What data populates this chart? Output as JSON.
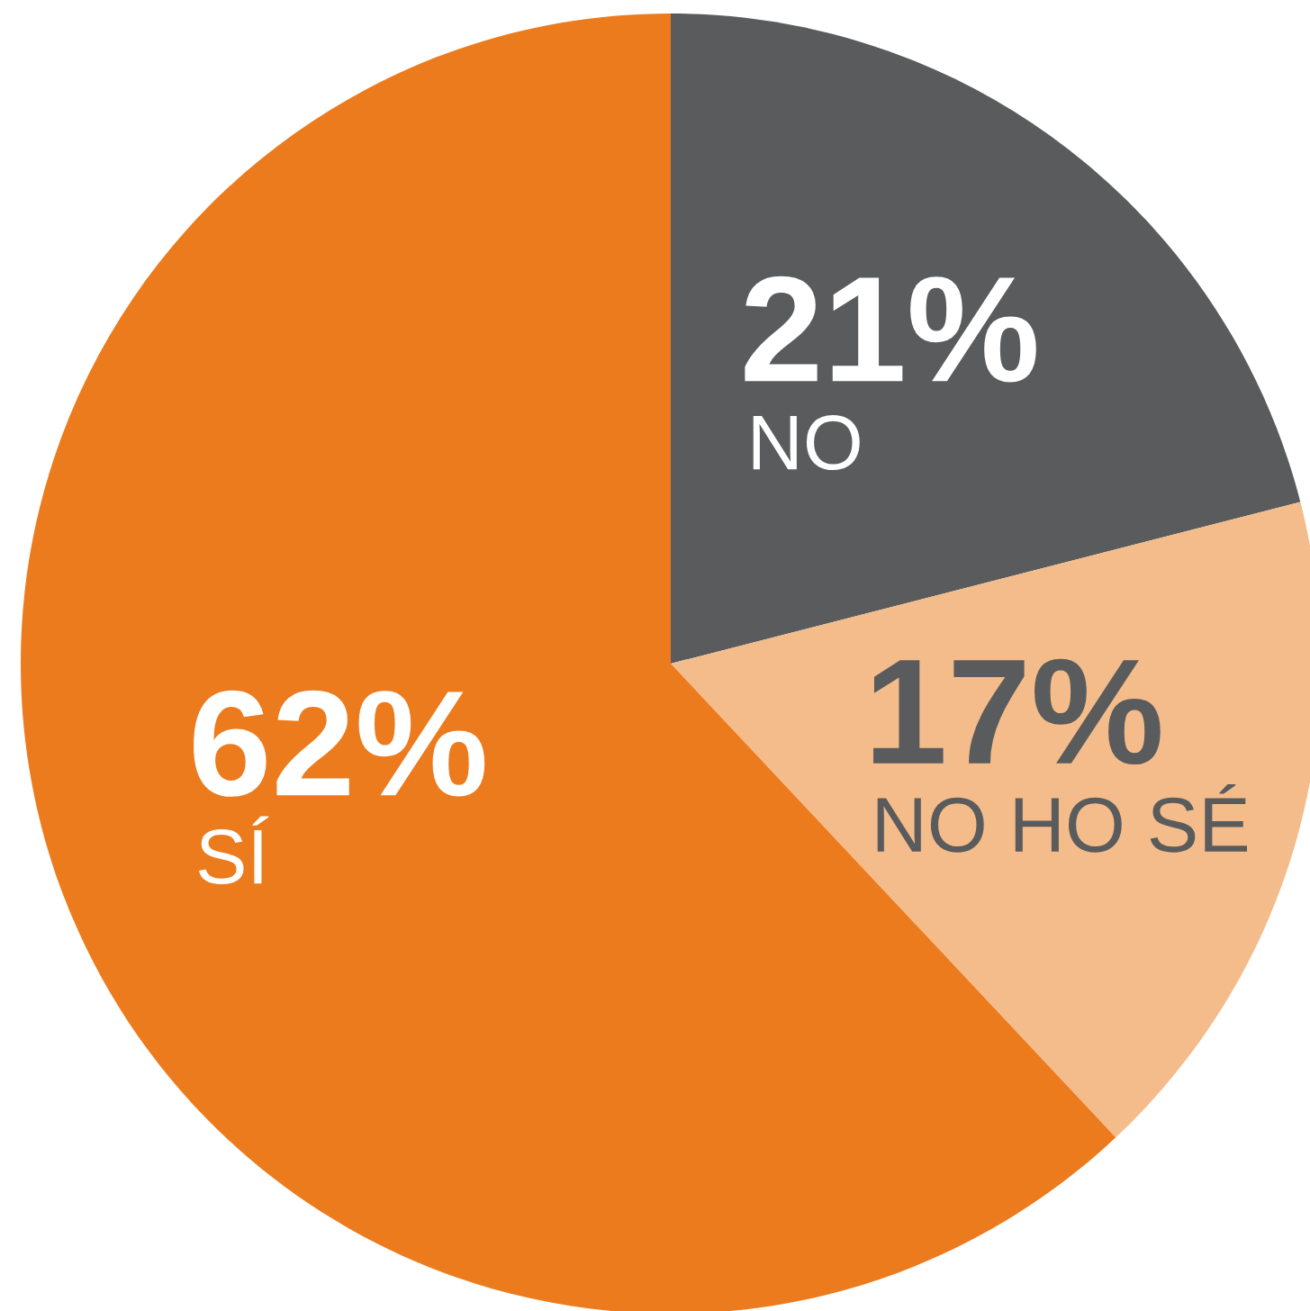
{
  "chart_data": {
    "type": "pie",
    "categories": [
      "NO",
      "NO HO SÉ",
      "SÍ"
    ],
    "values": [
      21,
      17,
      62
    ],
    "colors": [
      "#5a5b5d",
      "#f4bc8a",
      "#ec7b1e"
    ],
    "value_labels": [
      "21%",
      "17%",
      "62%"
    ]
  }
}
